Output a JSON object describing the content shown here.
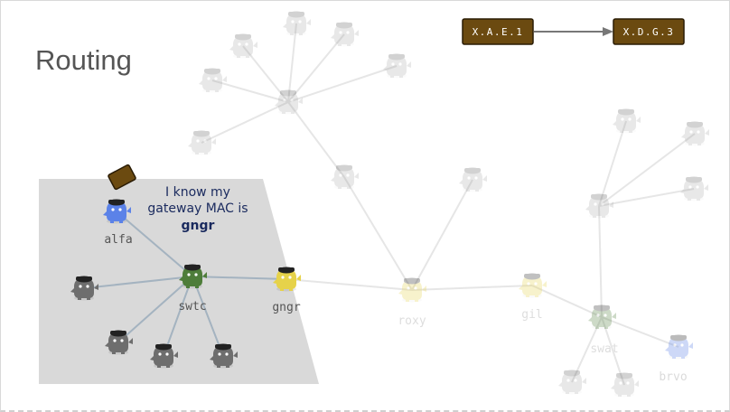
{
  "slide": {
    "title": "Routing"
  },
  "frame": {
    "source": "X.A.E.1",
    "destination": "X.D.G.3"
  },
  "callout": {
    "line1": "I know my",
    "line2": "gateway MAC  is",
    "line3": "gngr"
  },
  "hosts": {
    "alfa": "alfa",
    "swtc": "swtc",
    "gngr": "gngr",
    "roxy": "roxy",
    "gil": "gil",
    "swat": "swat",
    "brvo": "brvo"
  },
  "colors": {
    "blue": "#5b82e8",
    "green": "#4e7d3a",
    "yellow": "#e6d24a",
    "gray": "#6e6e6e",
    "frame": "#6b4a10",
    "region": "#d9d9d9"
  }
}
